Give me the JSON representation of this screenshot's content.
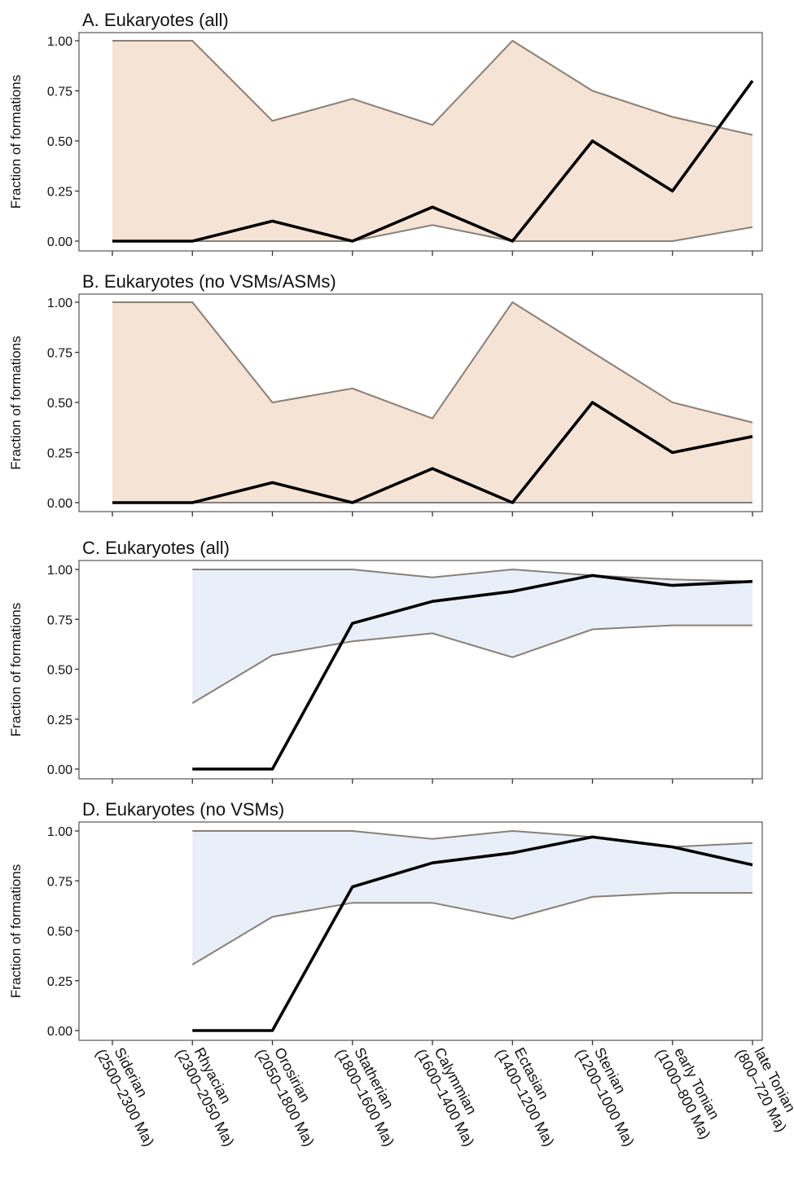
{
  "chart_data": [
    {
      "type": "line",
      "title": "A. Eukaryotes (all)",
      "ylabel": "Fraction of formations",
      "ylim": [
        0,
        1
      ],
      "yticks": [
        "0.00",
        "0.25",
        "0.50",
        "0.75",
        "1.00"
      ],
      "band_color": "#f5e3d5",
      "x": [
        "Siderian",
        "Rhyacian",
        "Orosirian",
        "Statherian",
        "Calymmian",
        "Ectasian",
        "Stenian",
        "early Tonian",
        "late Tonian"
      ],
      "series": [
        {
          "values": [
            0,
            0,
            0.1,
            0,
            0.17,
            0,
            0.5,
            0.25,
            0.8
          ]
        },
        {
          "values": [
            1.0,
            1.0,
            0.6,
            0.71,
            0.58,
            1.0,
            0.75,
            0.62,
            0.53
          ]
        },
        {
          "values": [
            0,
            0,
            0,
            0,
            0.08,
            0,
            0,
            0,
            0.07
          ]
        }
      ]
    },
    {
      "type": "line",
      "title": "B. Eukaryotes (no VSMs/ASMs)",
      "ylabel": "Fraction of formations",
      "ylim": [
        0,
        1
      ],
      "yticks": [
        "0.00",
        "0.25",
        "0.50",
        "0.75",
        "1.00"
      ],
      "band_color": "#f5e3d5",
      "x": [
        "Siderian",
        "Rhyacian",
        "Orosirian",
        "Statherian",
        "Calymmian",
        "Ectasian",
        "Stenian",
        "early Tonian",
        "late Tonian"
      ],
      "series": [
        {
          "values": [
            0,
            0,
            0.1,
            0,
            0.17,
            0,
            0.5,
            0.25,
            0.33
          ]
        },
        {
          "values": [
            1.0,
            1.0,
            0.5,
            0.57,
            0.42,
            1.0,
            0.75,
            0.5,
            0.4
          ]
        },
        {
          "values": [
            0,
            0,
            0,
            0,
            0,
            0,
            0,
            0,
            0
          ]
        }
      ]
    },
    {
      "type": "line",
      "title": "C. Eukaryotes (all)",
      "ylabel": "Fraction of formations",
      "ylim": [
        0,
        1
      ],
      "yticks": [
        "0.00",
        "0.25",
        "0.50",
        "0.75",
        "1.00"
      ],
      "band_color": "#e8eff8",
      "x": [
        "Siderian",
        "Rhyacian",
        "Orosirian",
        "Statherian",
        "Calymmian",
        "Ectasian",
        "Stenian",
        "early Tonian",
        "late Tonian"
      ],
      "series": [
        {
          "values": [
            null,
            0,
            0,
            0.73,
            0.84,
            0.89,
            0.97,
            0.92,
            0.94
          ]
        },
        {
          "values": [
            null,
            1.0,
            1.0,
            1.0,
            0.96,
            1.0,
            0.97,
            0.95,
            0.94
          ]
        },
        {
          "values": [
            null,
            0.33,
            0.57,
            0.64,
            0.68,
            0.56,
            0.7,
            0.72,
            0.72
          ]
        }
      ]
    },
    {
      "type": "line",
      "title": "D. Eukaryotes (no VSMs)",
      "ylabel": "Fraction of formations",
      "ylim": [
        0,
        1
      ],
      "yticks": [
        "0.00",
        "0.25",
        "0.50",
        "0.75",
        "1.00"
      ],
      "band_color": "#e8eff8",
      "x": [
        "Siderian",
        "Rhyacian",
        "Orosirian",
        "Statherian",
        "Calymmian",
        "Ectasian",
        "Stenian",
        "early Tonian",
        "late Tonian"
      ],
      "series": [
        {
          "values": [
            null,
            0,
            0,
            0.72,
            0.84,
            0.89,
            0.97,
            0.92,
            0.83
          ]
        },
        {
          "values": [
            null,
            1.0,
            1.0,
            1.0,
            0.96,
            1.0,
            0.97,
            0.92,
            0.94
          ]
        },
        {
          "values": [
            null,
            0.33,
            0.57,
            0.64,
            0.64,
            0.56,
            0.67,
            0.69,
            0.69
          ]
        }
      ]
    }
  ],
  "categories": [
    {
      "name": "Siderian",
      "range": "(2500–2300 Ma)"
    },
    {
      "name": "Rhyacian",
      "range": "(2300–2050 Ma)"
    },
    {
      "name": "Orosirian",
      "range": "(2050–1800 Ma)"
    },
    {
      "name": "Statherian",
      "range": "(1800–1600 Ma)"
    },
    {
      "name": "Calymmian",
      "range": "(1600–1400 Ma)"
    },
    {
      "name": "Ectasian",
      "range": "(1400–1200 Ma)"
    },
    {
      "name": "Stenian",
      "range": "(1200–1000 Ma)"
    },
    {
      "name": "early Tonian",
      "range": "(1000–800 Ma)"
    },
    {
      "name": "late Tonian",
      "range": "(800–720 Ma)"
    }
  ]
}
